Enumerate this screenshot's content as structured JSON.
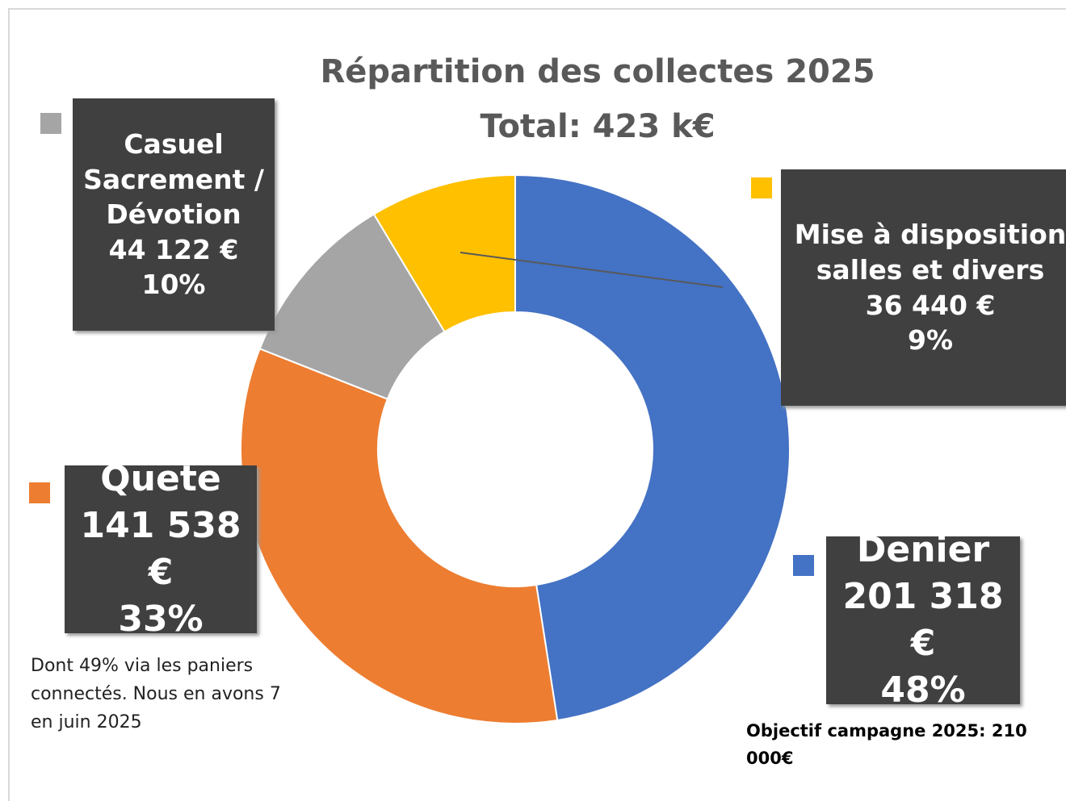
{
  "chart_data": {
    "type": "donut",
    "title": "Répartition des collectes 2025",
    "subtitle": "Total: 423 k€",
    "categories": [
      "Denier",
      "Quete",
      "Casuel Sacrement / Dévotion",
      "Mise à disposition salles et divers"
    ],
    "values": [
      201318,
      141538,
      44122,
      36440
    ],
    "value_labels": [
      "201 318 €",
      "141 538 €",
      "44 122 €",
      "36 440 €"
    ],
    "percent_labels": [
      "48%",
      "33%",
      "10%",
      "9%"
    ],
    "colors": [
      "#4472c4",
      "#ed7d31",
      "#a5a5a5",
      "#ffc000"
    ],
    "annotations": [
      "Dont 49% via les paniers connectés. Nous en avons 7 en juin 2025",
      "Objectif campagne 2025: 210 000€"
    ]
  }
}
